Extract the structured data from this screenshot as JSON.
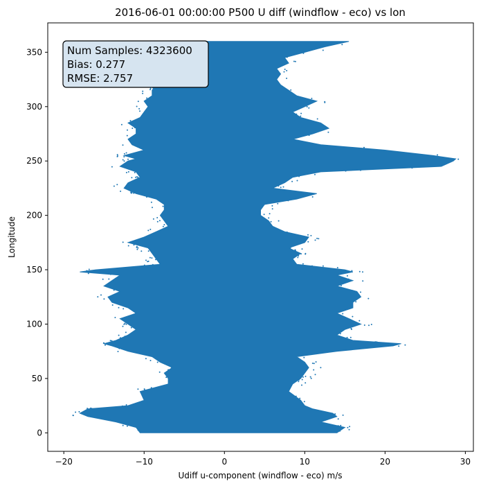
{
  "chart_data": {
    "type": "scatter",
    "title": "2016-06-01 00:00:00 P500 U diff (windflow - eco) vs lon",
    "xlabel": "Udiff u-component (windflow - eco) m/s",
    "ylabel": "Longitude",
    "xlim": [
      -22,
      31
    ],
    "ylim": [
      -17,
      377
    ],
    "xticks": [
      -20,
      -10,
      0,
      10,
      20,
      30
    ],
    "yticks": [
      0,
      50,
      100,
      150,
      200,
      250,
      300,
      350
    ],
    "grid": false,
    "color": "#1f77b4",
    "annotation_lines": [
      "Num Samples: 4323600",
      "Bias: 0.277",
      "RMSE: 2.757"
    ],
    "annotation_position": "top-left",
    "profile": {
      "lon": [
        0,
        5,
        10,
        15,
        18,
        22,
        25,
        30,
        38,
        45,
        50,
        55,
        60,
        65,
        70,
        75,
        80,
        82,
        85,
        90,
        95,
        100,
        105,
        110,
        115,
        120,
        125,
        130,
        135,
        140,
        145,
        148,
        150,
        155,
        160,
        165,
        170,
        175,
        180,
        185,
        190,
        195,
        200,
        205,
        210,
        215,
        220,
        225,
        230,
        235,
        240,
        245,
        250,
        252,
        255,
        260,
        265,
        270,
        275,
        280,
        285,
        290,
        295,
        300,
        305,
        310,
        315,
        320,
        325,
        330,
        335,
        340,
        345,
        350,
        355,
        360
      ],
      "min": [
        -10.5,
        -11.0,
        -13.5,
        -17.0,
        -18.0,
        -17.0,
        -12.0,
        -10.0,
        -10.5,
        -7.0,
        -7.0,
        -7.5,
        -6.5,
        -8.0,
        -9.0,
        -12.0,
        -14.0,
        -15.0,
        -13.5,
        -12.0,
        -11.0,
        -12.0,
        -13.0,
        -11.0,
        -12.0,
        -14.0,
        -14.5,
        -13.0,
        -15.0,
        -14.0,
        -13.0,
        -18.0,
        -16.0,
        -8.0,
        -8.5,
        -9.0,
        -9.5,
        -12.0,
        -10.0,
        -8.5,
        -7.0,
        -7.5,
        -8.0,
        -7.5,
        -7.5,
        -8.5,
        -11.0,
        -12.5,
        -12.0,
        -10.5,
        -11.0,
        -13.0,
        -12.0,
        -11.0,
        -12.5,
        -10.0,
        -11.5,
        -12.0,
        -11.0,
        -11.0,
        -12.0,
        -10.5,
        -10.0,
        -9.5,
        -10.0,
        -9.0,
        -9.0,
        -8.5,
        -7.0,
        -7.0,
        -5.0,
        -5.0,
        -6.0,
        -5.0,
        -6.0,
        -5.5
      ],
      "max": [
        14.0,
        15.0,
        12.0,
        14.0,
        13.5,
        11.0,
        10.0,
        9.5,
        8.0,
        8.5,
        9.5,
        10.0,
        10.5,
        10.0,
        9.0,
        14.0,
        21.0,
        22.0,
        16.0,
        14.0,
        15.0,
        17.0,
        15.5,
        14.0,
        16.0,
        16.0,
        17.0,
        16.5,
        14.0,
        16.0,
        14.0,
        16.0,
        15.0,
        9.0,
        8.5,
        9.5,
        8.0,
        10.0,
        10.5,
        7.5,
        6.0,
        5.5,
        4.5,
        4.5,
        5.0,
        9.0,
        11.5,
        6.0,
        7.5,
        8.5,
        12.0,
        27.0,
        28.5,
        28.8,
        26.0,
        20.0,
        12.0,
        8.5,
        11.0,
        13.0,
        12.0,
        9.5,
        8.5,
        10.0,
        11.5,
        9.0,
        8.0,
        7.0,
        6.5,
        7.0,
        6.5,
        8.0,
        7.5,
        10.0,
        12.5,
        15.5
      ]
    }
  }
}
